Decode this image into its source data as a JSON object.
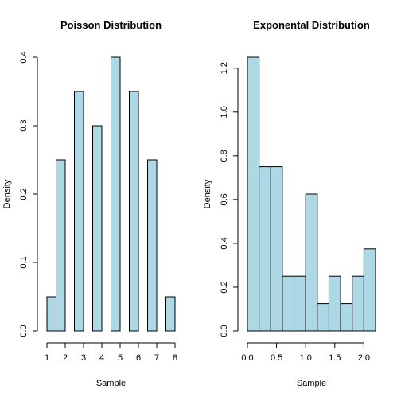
{
  "colors": {
    "bar_fill": "#add8e6",
    "bar_stroke": "#000000",
    "background": "#ffffff"
  },
  "chart_data": [
    {
      "type": "bar",
      "title": "Poisson Distribution",
      "xlabel": "Sample",
      "ylabel": "Density",
      "xlim": [
        1,
        8
      ],
      "ylim": [
        0,
        0.4
      ],
      "x_ticks": [
        1,
        2,
        3,
        4,
        5,
        6,
        7,
        8
      ],
      "y_ticks": [
        0.0,
        0.1,
        0.2,
        0.3,
        0.4
      ],
      "x_tick_labels": [
        "1",
        "2",
        "3",
        "4",
        "5",
        "6",
        "7",
        "8"
      ],
      "y_tick_labels": [
        "0.0",
        "0.1",
        "0.2",
        "0.3",
        "0.4"
      ],
      "bins": [
        {
          "x0": 1.0,
          "x1": 1.5,
          "value": 0.05
        },
        {
          "x0": 1.5,
          "x1": 2.0,
          "value": 0.25
        },
        {
          "x0": 2.0,
          "x1": 2.5,
          "value": 0.0
        },
        {
          "x0": 2.5,
          "x1": 3.0,
          "value": 0.35
        },
        {
          "x0": 3.0,
          "x1": 3.5,
          "value": 0.0
        },
        {
          "x0": 3.5,
          "x1": 4.0,
          "value": 0.3
        },
        {
          "x0": 4.0,
          "x1": 4.5,
          "value": 0.0
        },
        {
          "x0": 4.5,
          "x1": 5.0,
          "value": 0.4
        },
        {
          "x0": 5.0,
          "x1": 5.5,
          "value": 0.0
        },
        {
          "x0": 5.5,
          "x1": 6.0,
          "value": 0.35
        },
        {
          "x0": 6.0,
          "x1": 6.5,
          "value": 0.0
        },
        {
          "x0": 6.5,
          "x1": 7.0,
          "value": 0.25
        },
        {
          "x0": 7.0,
          "x1": 7.5,
          "value": 0.0
        },
        {
          "x0": 7.5,
          "x1": 8.0,
          "value": 0.05
        }
      ]
    },
    {
      "type": "bar",
      "title": "Exponental Distribution",
      "xlabel": "Sample",
      "ylabel": "Density",
      "xlim": [
        0,
        2.2
      ],
      "ylim": [
        0,
        1.25
      ],
      "x_ticks": [
        0.0,
        0.5,
        1.0,
        1.5,
        2.0
      ],
      "y_ticks": [
        0.0,
        0.2,
        0.4,
        0.6,
        0.8,
        1.0,
        1.2
      ],
      "x_tick_labels": [
        "0.0",
        "0.5",
        "1.0",
        "1.5",
        "2.0"
      ],
      "y_tick_labels": [
        "0.0",
        "0.2",
        "0.4",
        "0.6",
        "0.8",
        "1.0",
        "1.2"
      ],
      "bins": [
        {
          "x0": 0.0,
          "x1": 0.2,
          "value": 1.25
        },
        {
          "x0": 0.2,
          "x1": 0.4,
          "value": 0.75
        },
        {
          "x0": 0.4,
          "x1": 0.6,
          "value": 0.75
        },
        {
          "x0": 0.6,
          "x1": 0.8,
          "value": 0.25
        },
        {
          "x0": 0.8,
          "x1": 1.0,
          "value": 0.25
        },
        {
          "x0": 1.0,
          "x1": 1.2,
          "value": 0.625
        },
        {
          "x0": 1.2,
          "x1": 1.4,
          "value": 0.125
        },
        {
          "x0": 1.4,
          "x1": 1.6,
          "value": 0.25
        },
        {
          "x0": 1.6,
          "x1": 1.8,
          "value": 0.125
        },
        {
          "x0": 1.8,
          "x1": 2.0,
          "value": 0.25
        },
        {
          "x0": 2.0,
          "x1": 2.2,
          "value": 0.375
        }
      ]
    }
  ]
}
